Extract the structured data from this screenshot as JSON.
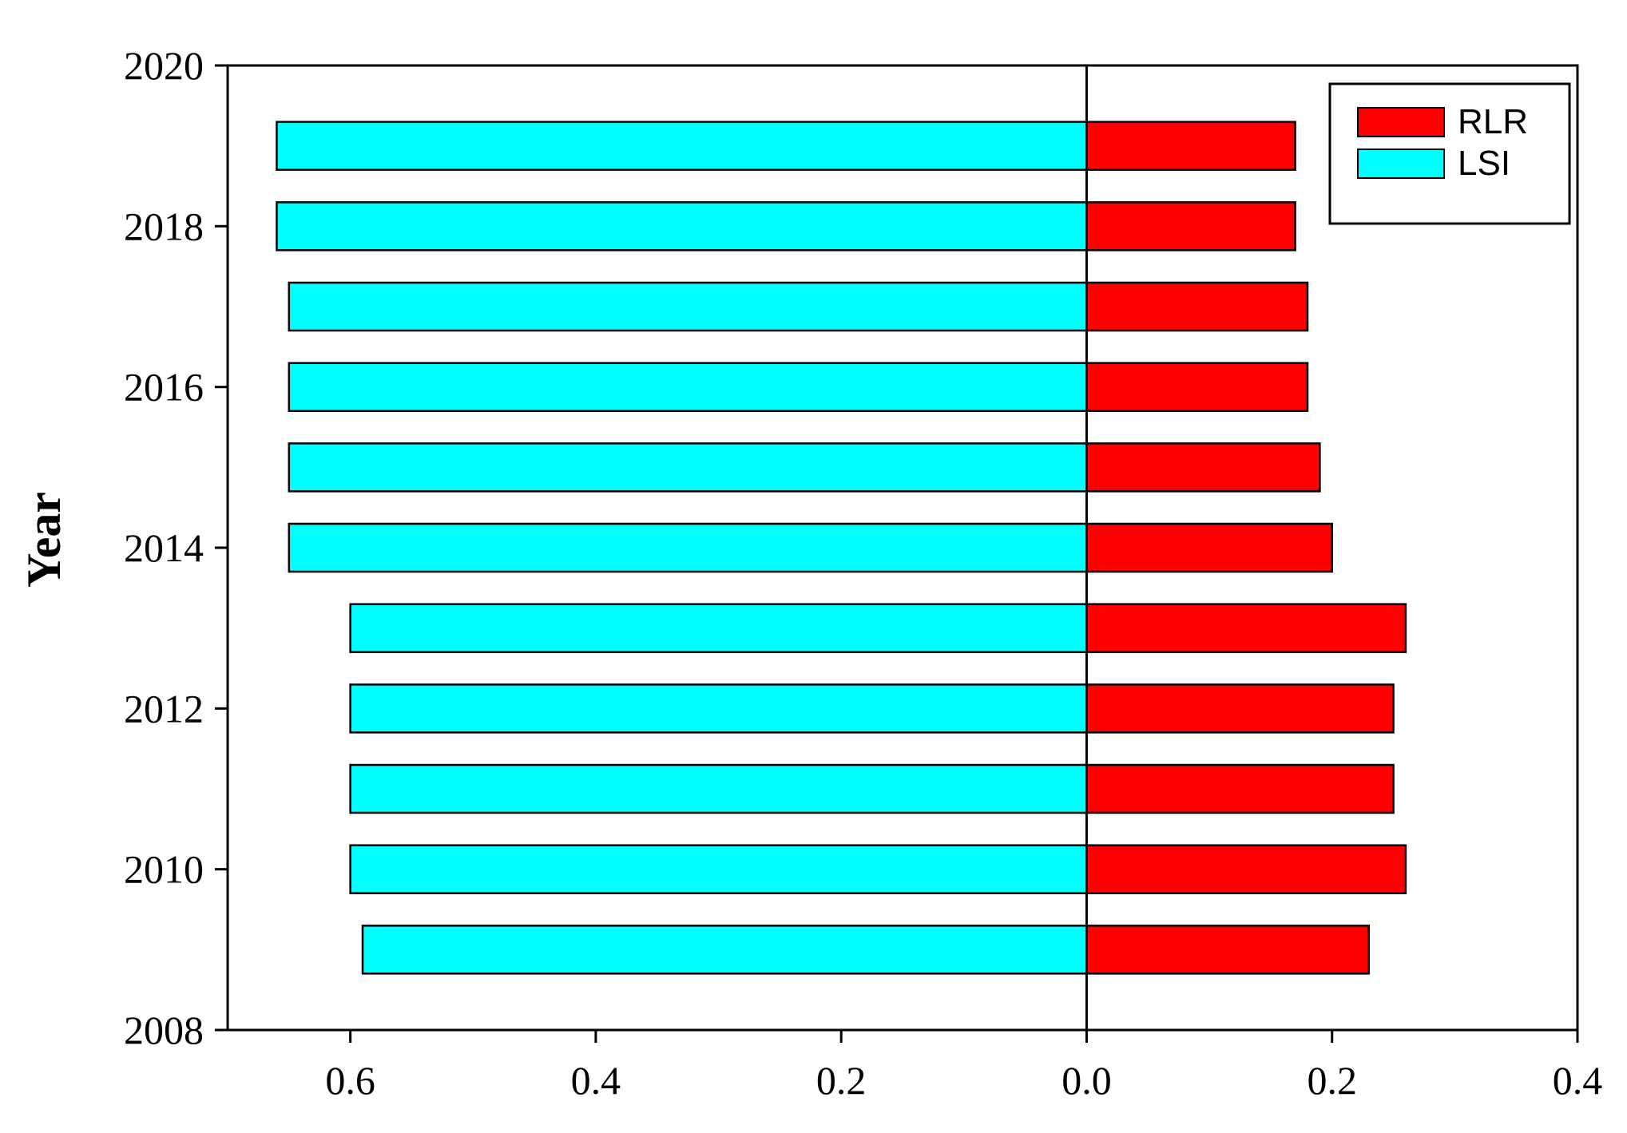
{
  "chart_data": {
    "type": "bar",
    "orientation": "horizontal",
    "layout": "butterfly",
    "ylabel": "Year",
    "xlabel": "",
    "title": "",
    "categories": [
      2009,
      2010,
      2011,
      2012,
      2013,
      2014,
      2015,
      2016,
      2017,
      2018,
      2019
    ],
    "ylim": [
      2008,
      2020
    ],
    "yticks": [
      2008,
      2010,
      2012,
      2014,
      2016,
      2018,
      2020
    ],
    "ytick_labels": [
      "2008",
      "2010",
      "2012",
      "2014",
      "2016",
      "2018",
      "2020"
    ],
    "xlim": [
      -0.7,
      0.4
    ],
    "xticks": [
      -0.6,
      -0.4,
      -0.2,
      0.0,
      0.2,
      0.4
    ],
    "xtick_labels": [
      "0.6",
      "0.4",
      "0.2",
      "0.0",
      "0.2",
      "0.4"
    ],
    "series": [
      {
        "name": "RLR",
        "side": "right",
        "color": "#ff0000",
        "values": [
          0.23,
          0.26,
          0.25,
          0.25,
          0.26,
          0.2,
          0.19,
          0.18,
          0.18,
          0.17,
          0.17
        ]
      },
      {
        "name": "LSI",
        "side": "left",
        "color": "#00ffff",
        "values": [
          0.59,
          0.6,
          0.6,
          0.6,
          0.6,
          0.65,
          0.65,
          0.65,
          0.65,
          0.66,
          0.66
        ]
      }
    ],
    "legend": {
      "position": "top-right",
      "labels": [
        "RLR",
        "LSI"
      ]
    },
    "grid": false
  }
}
